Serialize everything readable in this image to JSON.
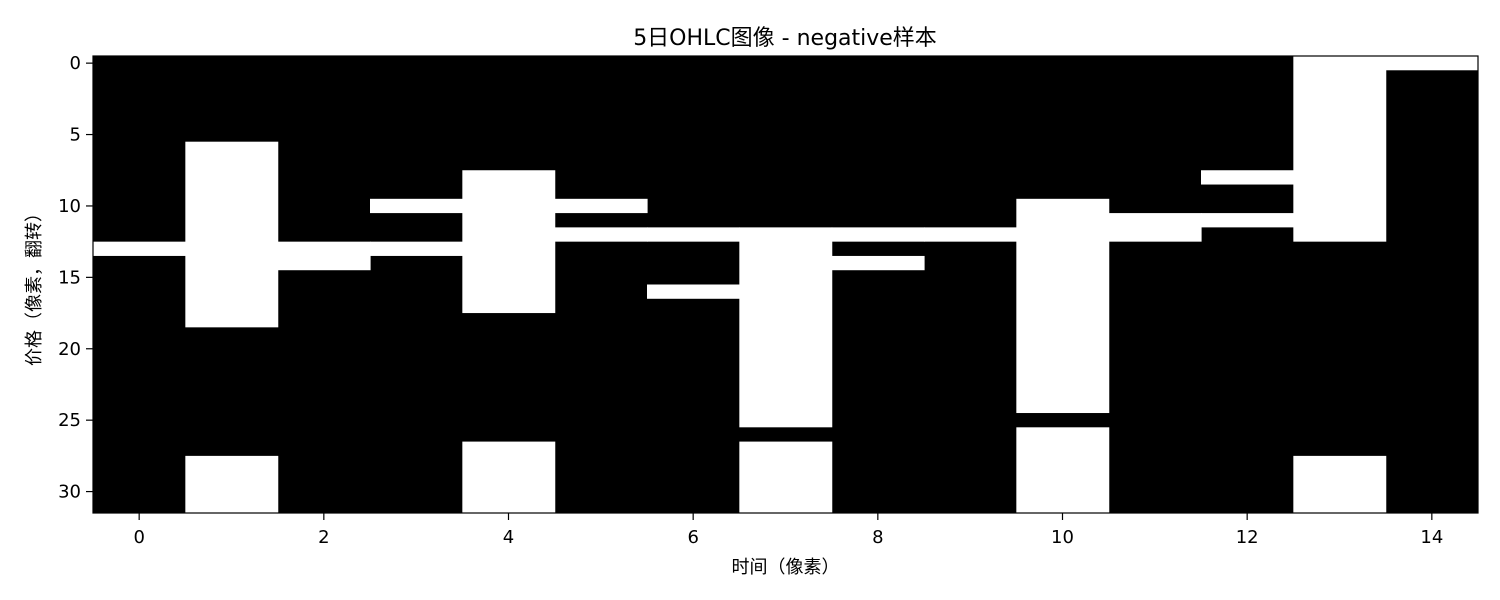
{
  "chart_data": {
    "type": "heatmap",
    "title": "5日OHLC图像 - negative样本",
    "xlabel": "时间（像素）",
    "ylabel": "价格（像素，翻转）",
    "rows": 32,
    "cols": 15,
    "xlim": [
      -0.5,
      14.5
    ],
    "ylim": [
      31.5,
      -0.5
    ],
    "xticks": [
      0,
      2,
      4,
      6,
      8,
      10,
      12,
      14
    ],
    "yticks": [
      0,
      5,
      10,
      15,
      20,
      25,
      30
    ],
    "colormap": {
      "0": "#000000",
      "1": "#ffffff"
    },
    "white_runs": [
      {
        "col": 0,
        "ranges": [
          [
            13,
            13
          ]
        ]
      },
      {
        "col": 1,
        "ranges": [
          [
            6,
            18
          ],
          [
            28,
            31
          ]
        ]
      },
      {
        "col": 2,
        "ranges": [
          [
            13,
            14
          ]
        ]
      },
      {
        "col": 3,
        "ranges": [
          [
            10,
            10
          ],
          [
            13,
            13
          ]
        ]
      },
      {
        "col": 4,
        "ranges": [
          [
            8,
            17
          ],
          [
            27,
            31
          ]
        ]
      },
      {
        "col": 5,
        "ranges": [
          [
            10,
            10
          ],
          [
            12,
            12
          ]
        ]
      },
      {
        "col": 6,
        "ranges": [
          [
            12,
            12
          ],
          [
            16,
            16
          ]
        ]
      },
      {
        "col": 7,
        "ranges": [
          [
            12,
            25
          ],
          [
            27,
            31
          ]
        ]
      },
      {
        "col": 8,
        "ranges": [
          [
            12,
            12
          ],
          [
            14,
            14
          ]
        ]
      },
      {
        "col": 9,
        "ranges": [
          [
            12,
            12
          ]
        ]
      },
      {
        "col": 10,
        "ranges": [
          [
            10,
            24
          ],
          [
            26,
            31
          ]
        ]
      },
      {
        "col": 11,
        "ranges": [
          [
            11,
            12
          ]
        ]
      },
      {
        "col": 12,
        "ranges": [
          [
            8,
            8
          ],
          [
            11,
            11
          ]
        ]
      },
      {
        "col": 13,
        "ranges": [
          [
            0,
            12
          ],
          [
            28,
            31
          ]
        ]
      },
      {
        "col": 14,
        "ranges": [
          [
            0,
            0
          ]
        ]
      }
    ]
  }
}
